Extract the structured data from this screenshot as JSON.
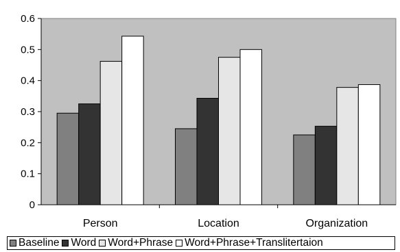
{
  "chart_data": {
    "type": "bar",
    "title": "",
    "xlabel": "",
    "ylabel": "",
    "categories": [
      "Person",
      "Location",
      "Organization"
    ],
    "series": [
      {
        "name": "Baseline",
        "values": [
          0.295,
          0.245,
          0.225
        ],
        "color": "#808080"
      },
      {
        "name": "Word",
        "values": [
          0.325,
          0.343,
          0.253
        ],
        "color": "#333333"
      },
      {
        "name": "Word+Phrase",
        "values": [
          0.462,
          0.475,
          0.378
        ],
        "color": "#e6e6e6"
      },
      {
        "name": "Word+Phrase+Translitertaion",
        "values": [
          0.543,
          0.5,
          0.387
        ],
        "color": "#ffffff"
      }
    ],
    "ylim": [
      0,
      0.6
    ],
    "yticks": [
      "0",
      "0.1",
      "0.2",
      "0.3",
      "0.4",
      "0.5",
      "0.6"
    ],
    "grid": false,
    "plot_background": "#c0c0c0",
    "legend_position": "bottom"
  }
}
